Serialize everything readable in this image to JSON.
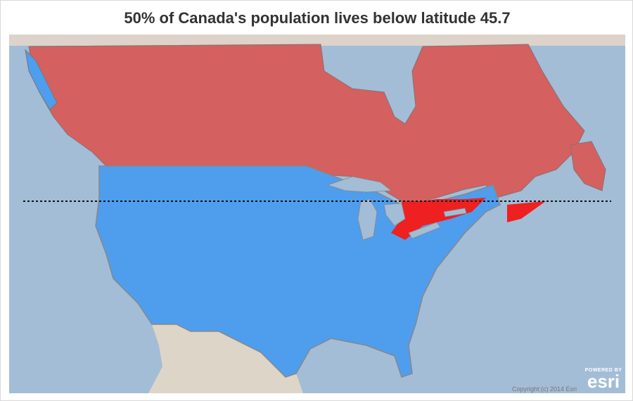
{
  "title": "50% of Canada's population lives below latitude 45.7",
  "attribution": "Copyright:(c) 2014 Esri",
  "logo": {
    "tagline": "POWERED BY",
    "brand": "esri"
  }
}
